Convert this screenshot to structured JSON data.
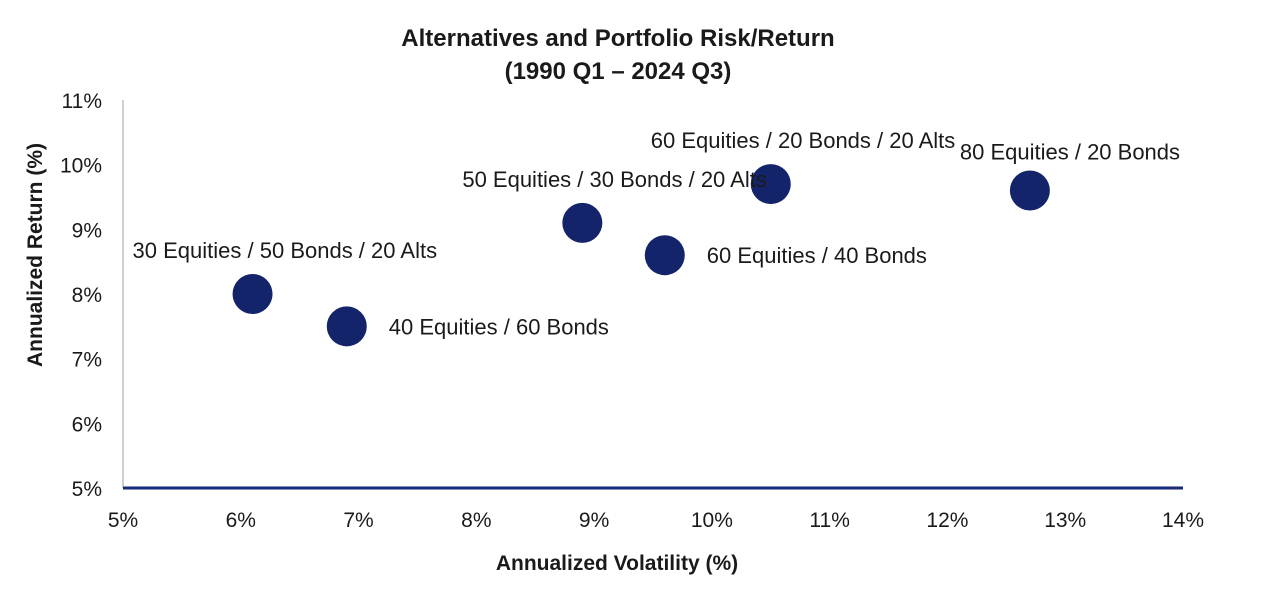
{
  "chart_data": {
    "type": "scatter",
    "title": "Alternatives and Portfolio Risk/Return",
    "subtitle": "(1990 Q1 – 2024 Q3)",
    "xlabel": "Annualized Volatility (%)",
    "ylabel": "Annualized Return (%)",
    "xlim": [
      5,
      14
    ],
    "ylim": [
      5,
      11
    ],
    "x_ticks": [
      5,
      6,
      7,
      8,
      9,
      10,
      11,
      12,
      13,
      14
    ],
    "x_tick_labels": [
      "5%",
      "6%",
      "7%",
      "8%",
      "9%",
      "10%",
      "11%",
      "12%",
      "13%",
      "14%"
    ],
    "y_ticks": [
      5,
      6,
      7,
      8,
      9,
      10,
      11
    ],
    "y_tick_labels": [
      "5%",
      "6%",
      "7%",
      "8%",
      "9%",
      "10%",
      "11%"
    ],
    "grid": false,
    "legend": "none",
    "points": [
      {
        "label": "30 Equities / 50 Bonds / 20 Alts",
        "x": 6.1,
        "y": 8.0,
        "label_position": "above-left"
      },
      {
        "label": "40 Equities / 60 Bonds",
        "x": 6.9,
        "y": 7.5,
        "label_position": "right"
      },
      {
        "label": "50 Equities / 30 Bonds / 20 Alts",
        "x": 8.9,
        "y": 9.1,
        "label_position": "above-left"
      },
      {
        "label": "60 Equities / 40 Bonds",
        "x": 9.6,
        "y": 8.6,
        "label_position": "right"
      },
      {
        "label": "60 Equities / 20 Bonds / 20 Alts",
        "x": 10.5,
        "y": 9.7,
        "label_position": "above-left"
      },
      {
        "label": "80 Equities / 20 Bonds",
        "x": 12.7,
        "y": 9.6,
        "label_position": "above"
      }
    ]
  },
  "colors": {
    "marker": "#14246b",
    "x_axis_line": "#1a2a7a",
    "y_axis_line": "#bfbfbf",
    "text": "#1a1a1a"
  }
}
